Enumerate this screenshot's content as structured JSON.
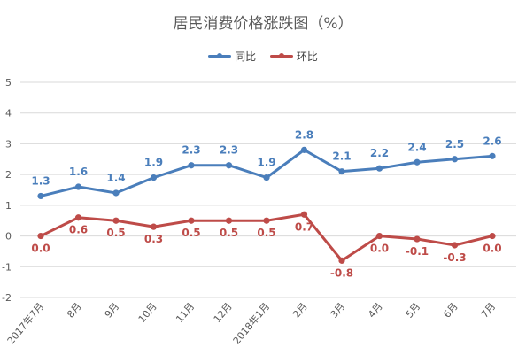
{
  "chart_data": {
    "type": "line",
    "title": "居民消费价格涨跌图（%）",
    "categories": [
      "2017年7月",
      "8月",
      "9月",
      "10月",
      "11月",
      "12月",
      "2018年1月",
      "2月",
      "3月",
      "4月",
      "5月",
      "6月",
      "7月"
    ],
    "series": [
      {
        "name": "同比",
        "color": "#4a7ebb",
        "values": [
          1.3,
          1.6,
          1.4,
          1.9,
          2.3,
          2.3,
          1.9,
          2.8,
          2.1,
          2.2,
          2.4,
          2.5,
          2.6
        ],
        "labels": [
          "1.3",
          "1.6",
          "1.4",
          "1.9",
          "2.3",
          "2.3",
          "1.9",
          "2.8",
          "2.1",
          "2.2",
          "2.4",
          "2.5",
          "2.6"
        ]
      },
      {
        "name": "环比",
        "color": "#be4b48",
        "values": [
          0.0,
          0.6,
          0.5,
          0.3,
          0.5,
          0.5,
          0.5,
          0.7,
          -0.8,
          0.0,
          -0.1,
          -0.3,
          0.0
        ],
        "labels": [
          "0.0",
          "0.6",
          "0.5",
          "0.3",
          "0.5",
          "0.5",
          "0.5",
          "0.7",
          "-0.8",
          "0.0",
          "-0.1",
          "-0.3",
          "0.0"
        ]
      }
    ],
    "ylim": [
      -2,
      5
    ],
    "yticks": [
      "-2",
      "-1",
      "0",
      "1",
      "2",
      "3",
      "4",
      "5"
    ],
    "grid": true,
    "legend": "top-center"
  }
}
